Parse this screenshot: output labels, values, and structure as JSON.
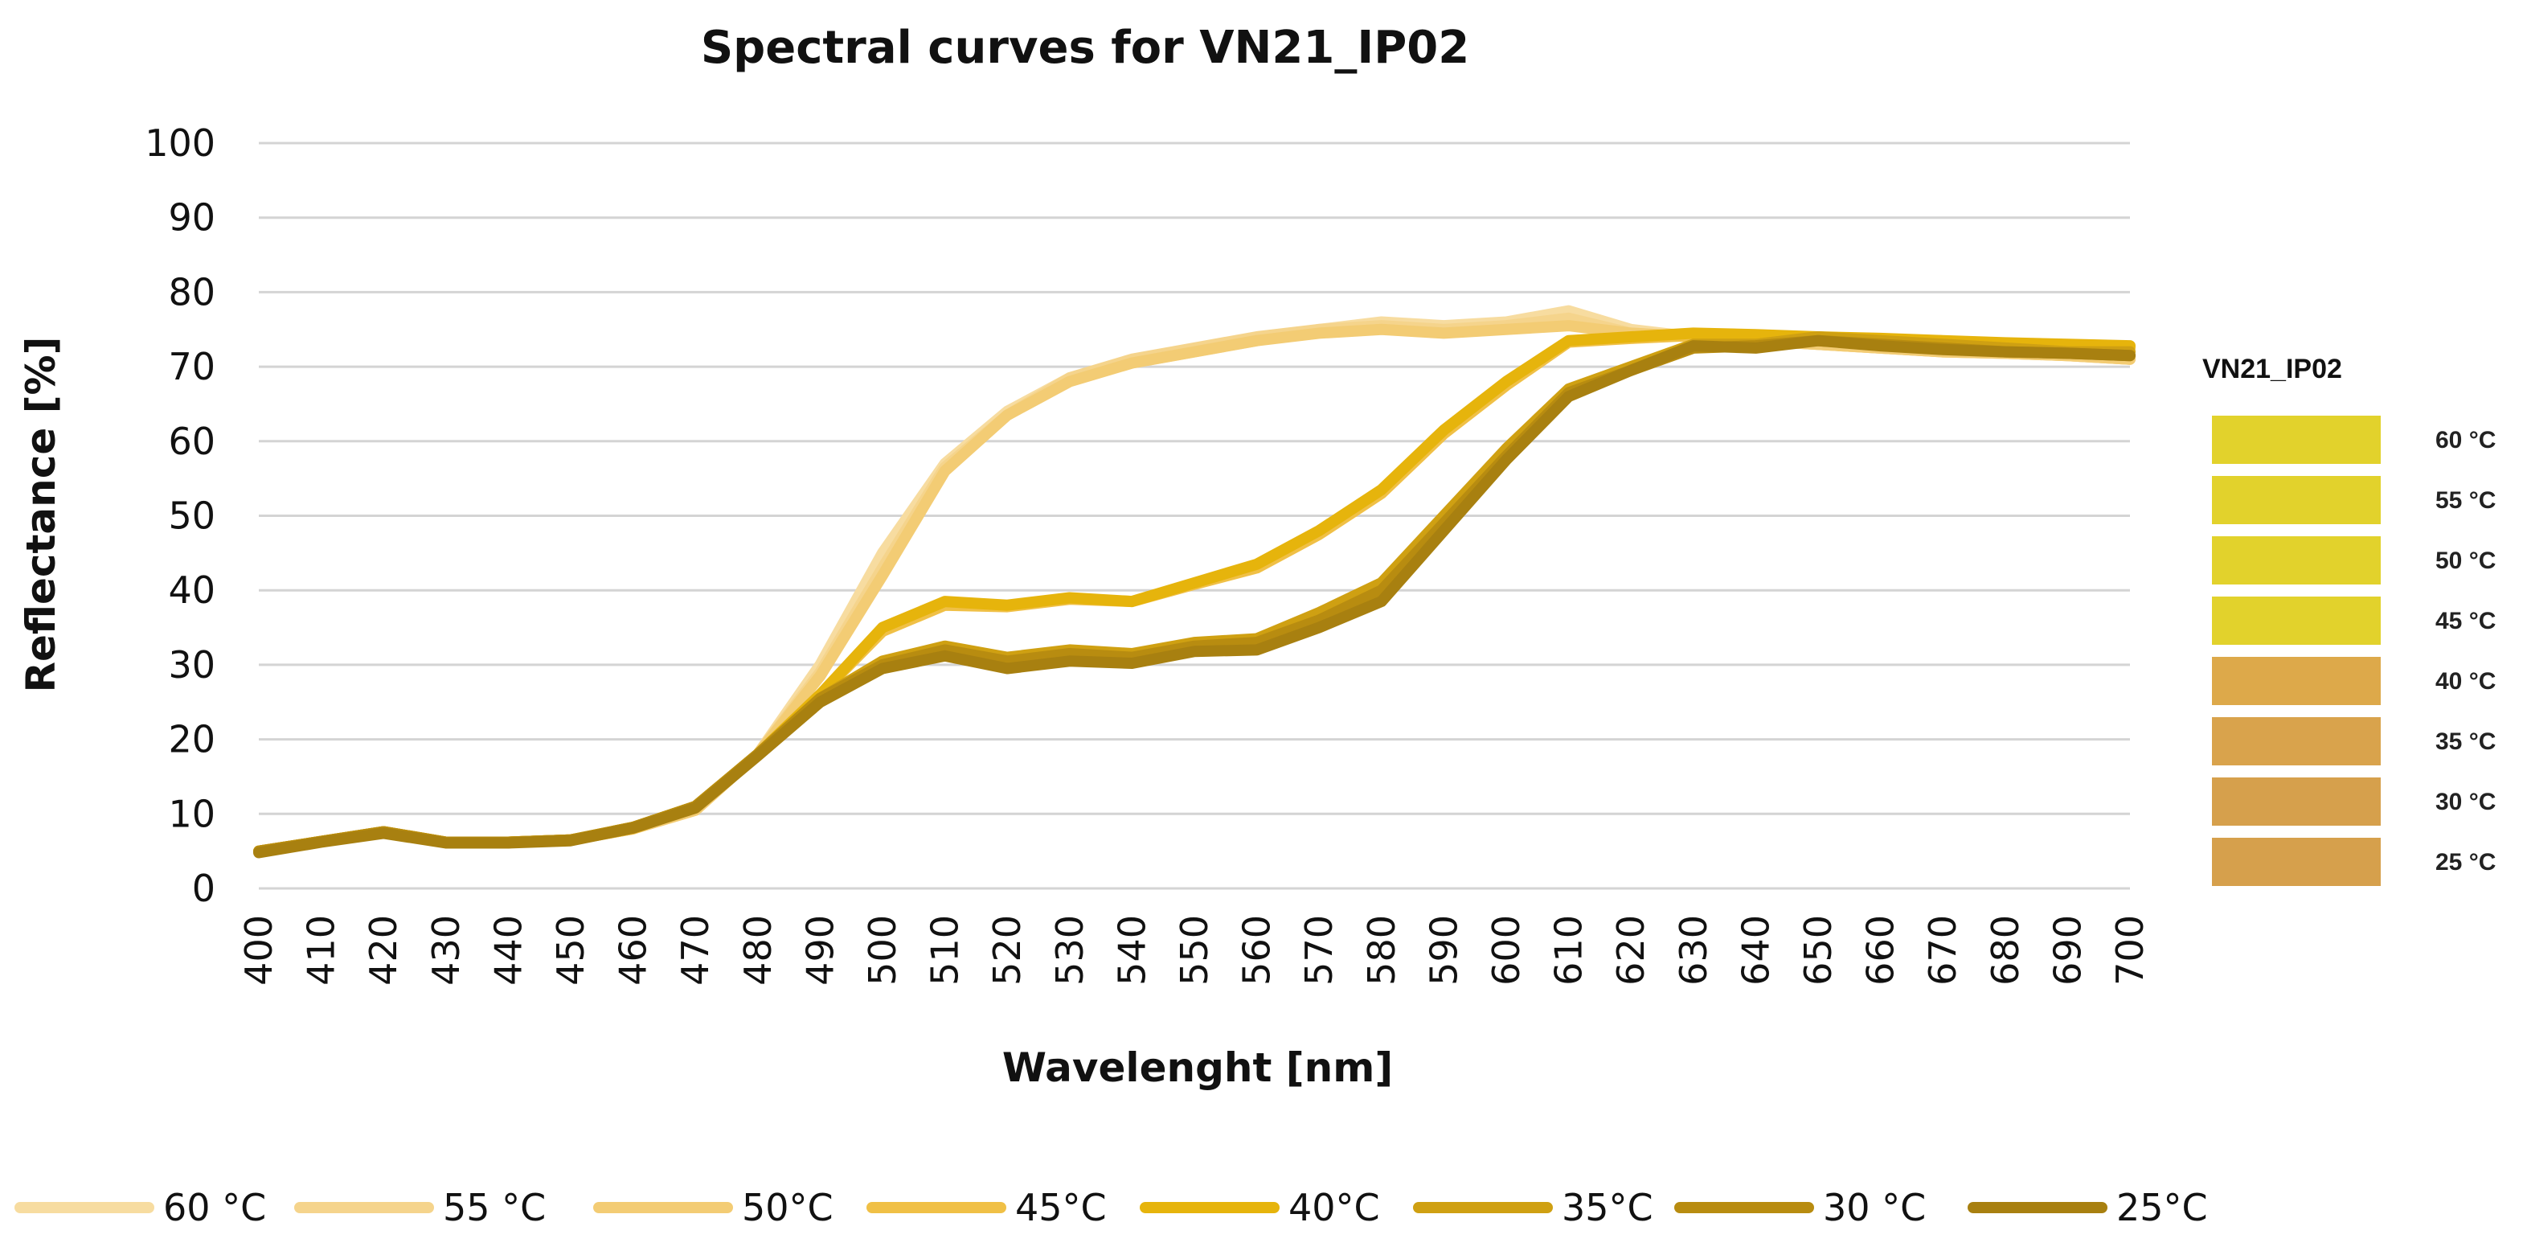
{
  "chart_data": {
    "type": "line",
    "title": "Spectral curves for VN21_IP02",
    "xlabel": "Wavelenght [nm]",
    "ylabel": "Reflectance [%]",
    "ylim": [
      0,
      100
    ],
    "yticks": [
      0,
      10,
      20,
      30,
      40,
      50,
      60,
      70,
      80,
      90,
      100
    ],
    "x": [
      400,
      410,
      420,
      430,
      440,
      450,
      460,
      470,
      480,
      490,
      500,
      510,
      520,
      530,
      540,
      550,
      560,
      570,
      580,
      590,
      600,
      610,
      620,
      630,
      640,
      650,
      660,
      670,
      680,
      690,
      700
    ],
    "series": [
      {
        "name": "60 °C",
        "color": "#f7dca0",
        "values": [
          5,
          6.3,
          7.6,
          6.2,
          6.2,
          6.5,
          8,
          10.5,
          18,
          30,
          45,
          57,
          64,
          68.5,
          70.5,
          72,
          73.5,
          75,
          76,
          75.5,
          76,
          77.5,
          75,
          74,
          73.5,
          73,
          72.5,
          72,
          71.8,
          71.5,
          71
        ]
      },
      {
        "name": "55 °C",
        "color": "#f5d48c",
        "values": [
          5,
          6.3,
          7.6,
          6.2,
          6.2,
          6.5,
          8,
          10.5,
          18,
          29,
          43,
          56.5,
          63.5,
          68.5,
          71,
          72.5,
          74,
          75,
          75.5,
          75,
          75.5,
          76.5,
          74.5,
          74,
          73.5,
          73,
          72.5,
          72,
          71.8,
          71.5,
          71
        ]
      },
      {
        "name": "50°C",
        "color": "#f3cc74",
        "values": [
          5,
          6.3,
          7.6,
          6.2,
          6.2,
          6.5,
          8,
          10.5,
          18,
          28.5,
          42,
          56,
          63.5,
          68,
          70.5,
          72,
          73.5,
          74.5,
          75,
          74.5,
          75,
          75.5,
          74.5,
          74,
          73.5,
          73,
          72.5,
          72,
          71.8,
          71.5,
          71
        ]
      },
      {
        "name": "45°C",
        "color": "#f0c046",
        "values": [
          5,
          6.3,
          7.6,
          6.2,
          6.2,
          6.5,
          8,
          11,
          18,
          26,
          34.5,
          38,
          37.8,
          38.8,
          38.5,
          40.8,
          43,
          47.5,
          53,
          61,
          67.5,
          73.3,
          73.8,
          74.2,
          74,
          73.8,
          73.5,
          73.2,
          73,
          72.8,
          72.5
        ]
      },
      {
        "name": "40°C",
        "color": "#e6b40c",
        "values": [
          5,
          6.3,
          7.6,
          6.2,
          6.2,
          6.5,
          8.2,
          11,
          18,
          26,
          35,
          38.5,
          38,
          39,
          38.5,
          41,
          43.5,
          48,
          53.5,
          61.5,
          68,
          73.5,
          74,
          74.5,
          74.3,
          74,
          73.8,
          73.5,
          73.2,
          73,
          72.8
        ]
      },
      {
        "name": "35°C",
        "color": "#cfa012",
        "values": [
          5,
          6.3,
          7.6,
          6.2,
          6.2,
          6.5,
          8.2,
          11,
          18,
          25.5,
          30.5,
          32.5,
          31,
          32,
          31.5,
          33,
          33.5,
          37,
          41,
          50,
          59,
          67,
          70,
          73,
          73,
          74,
          73.5,
          73,
          72.5,
          72,
          72
        ]
      },
      {
        "name": "30 °C",
        "color": "#b88c10",
        "values": [
          5,
          6.3,
          7.6,
          6.2,
          6.2,
          6.5,
          8.2,
          11,
          18,
          25.5,
          30,
          32,
          30.5,
          31.5,
          31,
          32.5,
          33,
          36,
          40,
          49,
          58,
          66.5,
          69.5,
          72.5,
          72.8,
          73.5,
          73,
          72.5,
          72,
          71.8,
          71.5
        ]
      },
      {
        "name": "25°C",
        "color": "#a88010",
        "values": [
          4.8,
          6.2,
          7.4,
          6.1,
          6.1,
          6.4,
          8.1,
          10.8,
          17.8,
          25,
          29.5,
          31.2,
          29.5,
          30.5,
          30.2,
          31.8,
          32,
          35,
          38.5,
          48,
          57.5,
          66,
          69.5,
          72.8,
          72.5,
          73.5,
          72.8,
          72.3,
          72,
          71.8,
          71.5
        ]
      }
    ],
    "swatches": {
      "title": "VN21_IP02",
      "items": [
        {
          "label": "60 °C",
          "color": "#e2d22c"
        },
        {
          "label": "55 °C",
          "color": "#e2d22c"
        },
        {
          "label": "50 °C",
          "color": "#e2d22c"
        },
        {
          "label": "45 °C",
          "color": "#e2d22c"
        },
        {
          "label": "40 °C",
          "color": "#dda94a"
        },
        {
          "label": "35 °C",
          "color": "#d9a34c"
        },
        {
          "label": "30 °C",
          "color": "#d6a04c"
        },
        {
          "label": "25 °C",
          "color": "#d6a04c"
        }
      ]
    },
    "legend_position": "bottom",
    "grid": true
  }
}
